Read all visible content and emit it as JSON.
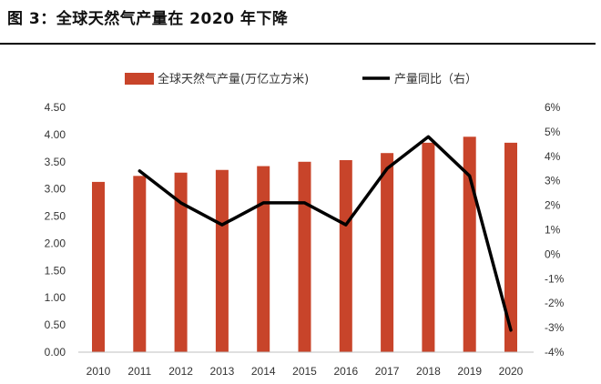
{
  "header": {
    "title": "图 3：全球天然气产量在 2020 年下降"
  },
  "chart_data": {
    "type": "bar",
    "categories": [
      "2010",
      "2011",
      "2012",
      "2013",
      "2014",
      "2015",
      "2016",
      "2017",
      "2018",
      "2019",
      "2020"
    ],
    "series": [
      {
        "name": "全球天然气产量(万亿立方米)",
        "type": "bar",
        "axis": "left",
        "color": "#c8442a",
        "values": [
          3.13,
          3.24,
          3.3,
          3.35,
          3.42,
          3.5,
          3.53,
          3.66,
          3.85,
          3.96,
          3.85
        ]
      },
      {
        "name": "产量同比（右）",
        "type": "line",
        "axis": "right",
        "color": "#000000",
        "values": [
          null,
          3.4,
          2.1,
          1.2,
          2.1,
          2.1,
          1.2,
          3.5,
          4.8,
          3.2,
          -3.1
        ]
      }
    ],
    "left_axis": {
      "ylim": [
        0,
        4.5
      ],
      "ticks": [
        "4.50",
        "4.00",
        "3.50",
        "3.00",
        "2.50",
        "2.00",
        "1.50",
        "1.00",
        "0.50",
        "0.00"
      ]
    },
    "right_axis": {
      "ylim": [
        -4,
        6
      ],
      "ticks": [
        "6%",
        "5%",
        "4%",
        "3%",
        "2%",
        "1%",
        "0%",
        "-1%",
        "-2%",
        "-3%",
        "-4%"
      ]
    },
    "grid": false,
    "legend_position": "top"
  }
}
